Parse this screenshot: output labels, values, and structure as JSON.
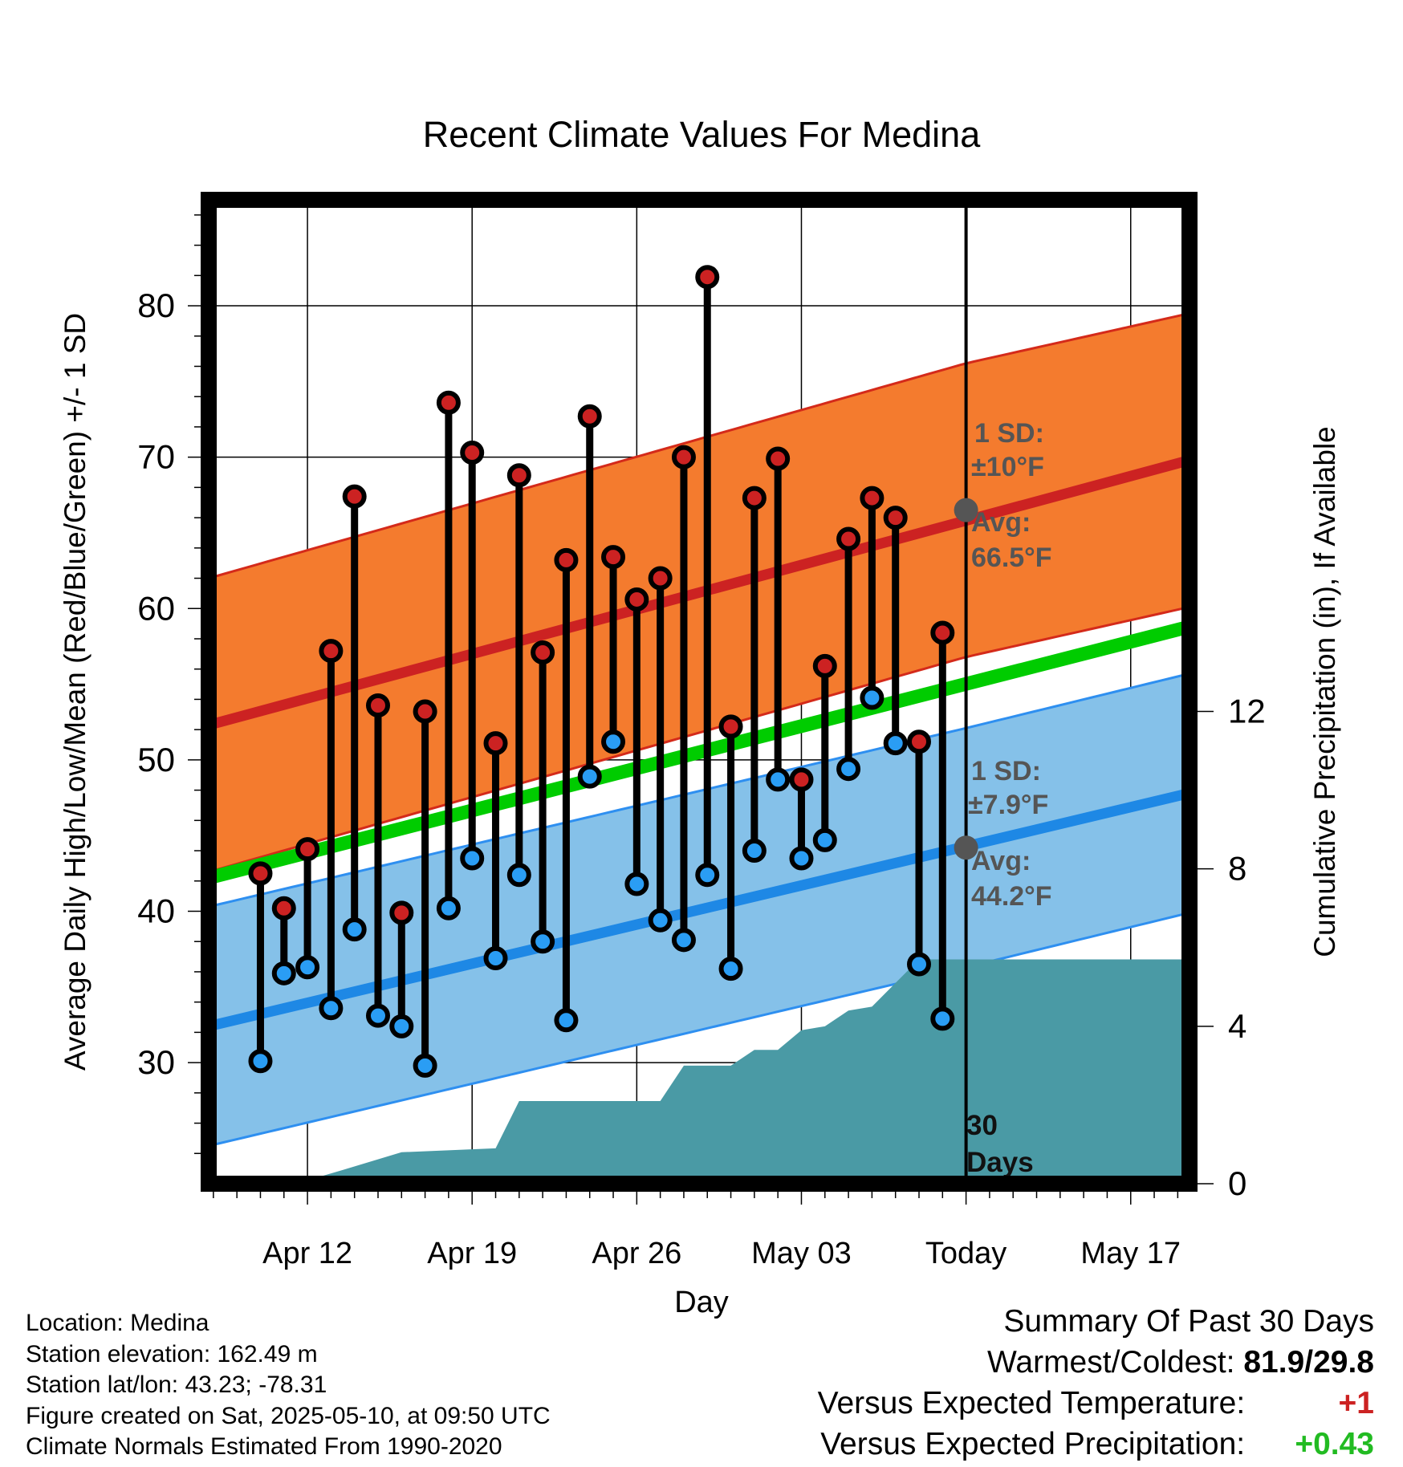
{
  "chart_data": {
    "type": "line",
    "title": "Recent Climate Values For Medina",
    "xlabel": "Day",
    "ylabel": "Average Daily High/Low/Mean (Red/Blue/Green) +/- 1 SD",
    "y2label": "Cumulative Precipitation (in), If Available",
    "x_ticks": [
      "Apr 12",
      "Apr 19",
      "Apr 26",
      "May 03",
      "Today",
      "May 17"
    ],
    "y_ticks": [
      30,
      40,
      50,
      60,
      70,
      80
    ],
    "y2_ticks": [
      0,
      4,
      8,
      12
    ],
    "ylim": [
      22,
      87
    ],
    "y2lim": [
      0,
      25
    ],
    "xlim_days": [
      -32.2,
      9.5
    ],
    "days": [
      -30,
      -29,
      -28,
      -27,
      -26,
      -25,
      -24,
      -23,
      -22,
      -21,
      -20,
      -19,
      -18,
      -17,
      -16,
      -15,
      -14,
      -13,
      -12,
      -11,
      -10,
      -9,
      -8,
      -7,
      -6,
      -5,
      -4,
      -3,
      -2,
      -1
    ],
    "series": [
      {
        "name": "Daily High",
        "color": "#cc2222",
        "values": [
          42.5,
          40.2,
          44.1,
          57.2,
          67.4,
          53.6,
          39.9,
          53.2,
          73.6,
          70.3,
          51.1,
          68.8,
          57.1,
          63.2,
          72.7,
          63.4,
          60.6,
          62.0,
          70.0,
          81.9,
          52.2,
          67.3,
          69.9,
          48.7,
          56.2,
          64.6,
          67.3,
          66.0,
          51.2,
          58.4
        ]
      },
      {
        "name": "Daily Low",
        "color": "#2a9df4",
        "values": [
          30.1,
          35.9,
          36.3,
          33.6,
          38.8,
          33.1,
          32.4,
          29.8,
          40.2,
          43.5,
          36.9,
          42.4,
          38.0,
          32.8,
          48.9,
          51.2,
          41.8,
          39.4,
          38.1,
          42.4,
          36.2,
          44.0,
          48.7,
          43.5,
          44.7,
          49.4,
          54.1,
          51.1,
          36.5,
          32.9
        ]
      },
      {
        "name": "Normal High",
        "color": "#cc2222",
        "start": 52.3,
        "today": 66.5,
        "end": 69.8,
        "sd": "±10°F",
        "avg_label": "66.5°F"
      },
      {
        "name": "Normal Low",
        "color": "#1e88e5",
        "start": 32.4,
        "today": 44.2,
        "end": 47.8,
        "sd": "±7.9°F",
        "avg_label": "44.2°F"
      },
      {
        "name": "Normal Mean",
        "color": "#00cc00",
        "start": 42.2,
        "today": 55.3,
        "end": 58.8
      }
    ],
    "precip_steps": [
      [
        -32.2,
        0
      ],
      [
        -28.5,
        0
      ],
      [
        -26.5,
        0.35
      ],
      [
        -24,
        0.8
      ],
      [
        -20,
        0.9
      ],
      [
        -19,
        2.1
      ],
      [
        -13.0,
        2.1
      ],
      [
        -12,
        3.0
      ],
      [
        -10,
        3.0
      ],
      [
        -9,
        3.4
      ],
      [
        -8,
        3.4
      ],
      [
        -7,
        3.9
      ],
      [
        -6,
        4.0
      ],
      [
        -5,
        4.4
      ],
      [
        -4,
        4.5
      ],
      [
        -3,
        5.1
      ],
      [
        -2,
        5.7
      ],
      [
        9.5,
        5.7
      ]
    ],
    "precip_label": [
      "30",
      "Days"
    ],
    "annotations": {
      "sd_label": "1 SD:",
      "avg_label": "Avg:"
    },
    "grid": true
  },
  "info": {
    "location": "Location: Medina",
    "elevation": "Station elevation: 162.49 m",
    "latlon": "Station lat/lon: 43.23; -78.31",
    "created": "Figure created on Sat, 2025-05-10, at 09:50 UTC",
    "normals": "Climate Normals Estimated From 1990-2020"
  },
  "summary": {
    "title": "Summary Of Past 30 Days",
    "warm_cold_label": "Warmest/Coldest:",
    "warm_cold_value": "81.9/29.8",
    "temp_label": "Versus Expected Temperature:",
    "temp_value": "+1",
    "temp_color": "#cc2222",
    "precip_label": "Versus Expected Precipitation:",
    "precip_value": "+0.43",
    "precip_color": "#22bb22"
  }
}
